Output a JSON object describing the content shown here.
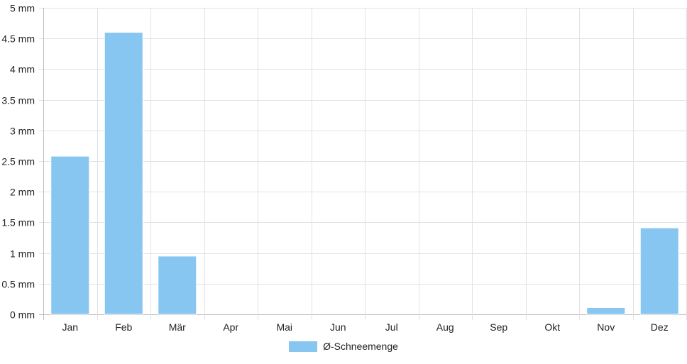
{
  "chart_data": {
    "type": "bar",
    "categories": [
      "Jan",
      "Feb",
      "Mär",
      "Apr",
      "Mai",
      "Jun",
      "Jul",
      "Aug",
      "Sep",
      "Okt",
      "Nov",
      "Dez"
    ],
    "series": [
      {
        "name": "Ø-Schneemenge",
        "values": [
          2.58,
          4.6,
          0.95,
          0,
          0,
          0,
          0,
          0,
          0,
          0,
          0.11,
          1.41
        ],
        "color": "#87c6f1"
      }
    ],
    "ylim": [
      0,
      5
    ],
    "yticks": [
      0,
      0.5,
      1,
      1.5,
      2,
      2.5,
      3,
      3.5,
      4,
      4.5,
      5
    ],
    "ytick_labels": [
      "0 mm",
      "0.5 mm",
      "1 mm",
      "1.5 mm",
      "2 mm",
      "2.5 mm",
      "3 mm",
      "3.5 mm",
      "4 mm",
      "4.5 mm",
      "5 mm"
    ],
    "grid": true,
    "legend_position": "bottom"
  }
}
